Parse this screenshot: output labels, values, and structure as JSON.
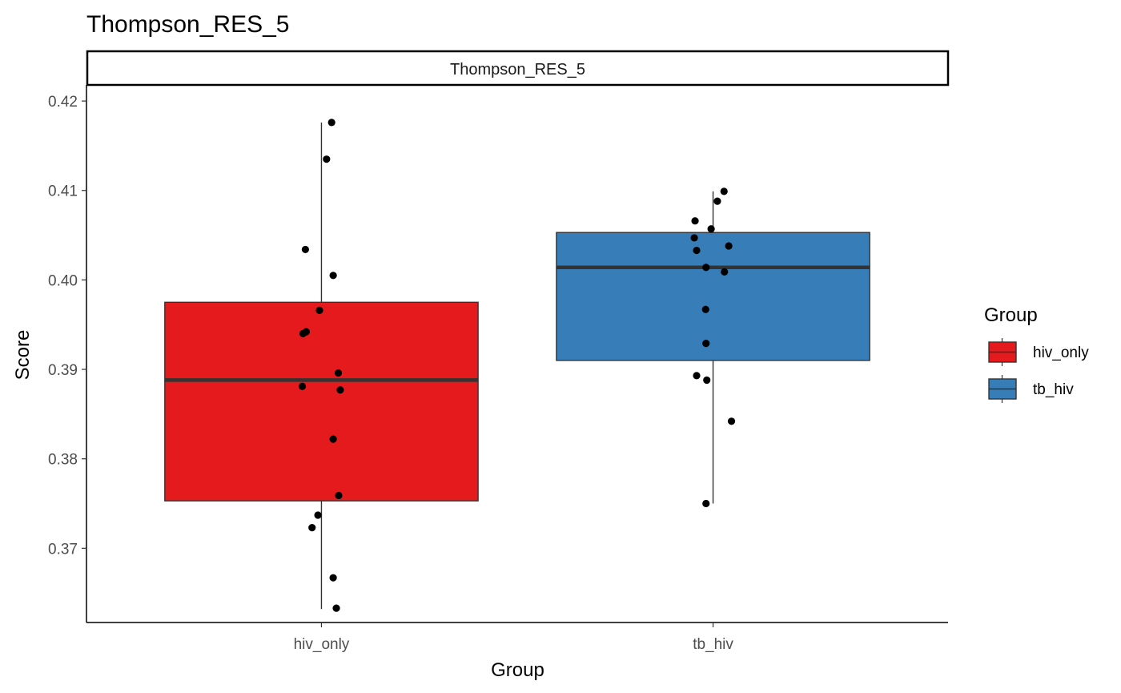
{
  "chart_data": {
    "type": "boxplot",
    "title": "Thompson_RES_5",
    "facet_label": "Thompson_RES_5",
    "xlabel": "Group",
    "ylabel": "Score",
    "categories": [
      "hiv_only",
      "tb_hiv"
    ],
    "ylim": [
      0.3617,
      0.4218
    ],
    "yticks": [
      0.37,
      0.38,
      0.39,
      0.4,
      0.41,
      0.42
    ],
    "ytick_labels": [
      "0.37",
      "0.38",
      "0.39",
      "0.40",
      "0.41",
      "0.42"
    ],
    "grid": false,
    "legend": {
      "title": "Group",
      "position": "right",
      "entries": [
        "hiv_only",
        "tb_hiv"
      ]
    },
    "colors": {
      "hiv_only": "#E41A1C",
      "tb_hiv": "#377EB8"
    },
    "boxes": [
      {
        "group": "hiv_only",
        "min": 0.3632,
        "q1": 0.3753,
        "median": 0.3888,
        "q3": 0.3975,
        "max": 0.4176
      },
      {
        "group": "tb_hiv",
        "min": 0.375,
        "q1": 0.391,
        "median": 0.4014,
        "q3": 0.4053,
        "max": 0.4099
      }
    ],
    "points": [
      {
        "group": "hiv_only",
        "jitter": 0.026,
        "y": 0.4176
      },
      {
        "group": "hiv_only",
        "jitter": 0.013,
        "y": 0.4135
      },
      {
        "group": "hiv_only",
        "jitter": -0.041,
        "y": 0.4034
      },
      {
        "group": "hiv_only",
        "jitter": 0.03,
        "y": 0.4005
      },
      {
        "group": "hiv_only",
        "jitter": -0.005,
        "y": 0.3966
      },
      {
        "group": "hiv_only",
        "jitter": -0.047,
        "y": 0.394
      },
      {
        "group": "hiv_only",
        "jitter": -0.039,
        "y": 0.3942
      },
      {
        "group": "hiv_only",
        "jitter": 0.043,
        "y": 0.3896
      },
      {
        "group": "hiv_only",
        "jitter": -0.049,
        "y": 0.3881
      },
      {
        "group": "hiv_only",
        "jitter": 0.048,
        "y": 0.3877
      },
      {
        "group": "hiv_only",
        "jitter": 0.03,
        "y": 0.3822
      },
      {
        "group": "hiv_only",
        "jitter": 0.044,
        "y": 0.3759
      },
      {
        "group": "hiv_only",
        "jitter": -0.009,
        "y": 0.3737
      },
      {
        "group": "hiv_only",
        "jitter": -0.024,
        "y": 0.3723
      },
      {
        "group": "hiv_only",
        "jitter": 0.03,
        "y": 0.3667
      },
      {
        "group": "hiv_only",
        "jitter": 0.038,
        "y": 0.3633
      },
      {
        "group": "tb_hiv",
        "jitter": 0.028,
        "y": 0.4099
      },
      {
        "group": "tb_hiv",
        "jitter": 0.011,
        "y": 0.4088
      },
      {
        "group": "tb_hiv",
        "jitter": -0.046,
        "y": 0.4066
      },
      {
        "group": "tb_hiv",
        "jitter": -0.005,
        "y": 0.4057
      },
      {
        "group": "tb_hiv",
        "jitter": -0.048,
        "y": 0.4047
      },
      {
        "group": "tb_hiv",
        "jitter": 0.04,
        "y": 0.4038
      },
      {
        "group": "tb_hiv",
        "jitter": -0.042,
        "y": 0.4033
      },
      {
        "group": "tb_hiv",
        "jitter": -0.018,
        "y": 0.4014
      },
      {
        "group": "tb_hiv",
        "jitter": 0.029,
        "y": 0.4009
      },
      {
        "group": "tb_hiv",
        "jitter": -0.019,
        "y": 0.3967
      },
      {
        "group": "tb_hiv",
        "jitter": -0.018,
        "y": 0.3929
      },
      {
        "group": "tb_hiv",
        "jitter": -0.042,
        "y": 0.3893
      },
      {
        "group": "tb_hiv",
        "jitter": -0.016,
        "y": 0.3888
      },
      {
        "group": "tb_hiv",
        "jitter": 0.047,
        "y": 0.3842
      },
      {
        "group": "tb_hiv",
        "jitter": -0.018,
        "y": 0.375
      }
    ]
  }
}
